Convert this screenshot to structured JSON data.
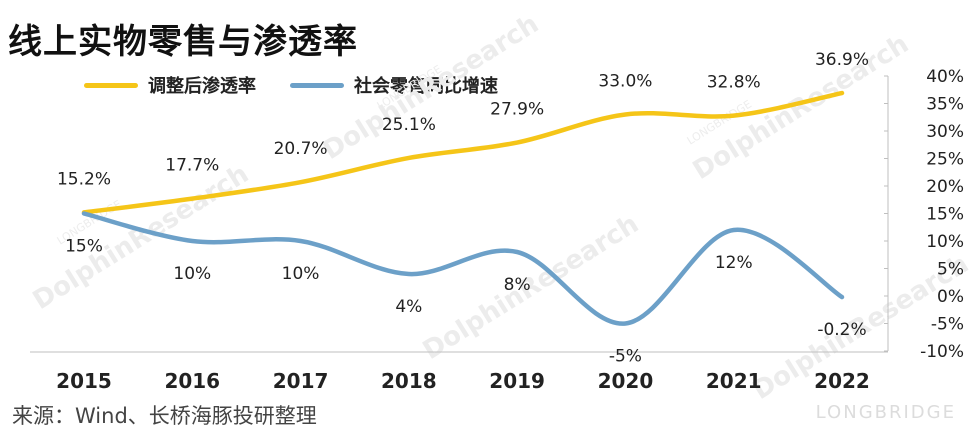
{
  "title": "线上实物零售与渗透率",
  "source": "来源：Wind、长桥海豚投研整理",
  "brand": "LONGBRIDGE",
  "watermark": "DolphinResearch",
  "watermark_small": "LONGBRIDGE",
  "colors": {
    "series1": "#F5C518",
    "series2": "#6CA0C8",
    "text": "#222222"
  },
  "chart_data": {
    "type": "line",
    "title": "线上实物零售与渗透率",
    "categories": [
      "2015",
      "2016",
      "2017",
      "2018",
      "2019",
      "2020",
      "2021",
      "2022"
    ],
    "series": [
      {
        "name": "调整后渗透率",
        "values": [
          15.2,
          17.7,
          20.7,
          25.1,
          27.9,
          33.0,
          32.8,
          36.9
        ],
        "labels": [
          "15.2%",
          "17.7%",
          "20.7%",
          "25.1%",
          "27.9%",
          "33.0%",
          "32.8%",
          "36.9%"
        ]
      },
      {
        "name": "社会零售同比增速",
        "values": [
          15,
          10,
          10,
          4,
          8,
          -5,
          12,
          -0.2
        ],
        "labels": [
          "15%",
          "10%",
          "10%",
          "4%",
          "8%",
          "-5%",
          "12%",
          "-0.2%"
        ]
      }
    ],
    "ylim": [
      -10,
      40
    ],
    "yticks": [
      "40%",
      "35%",
      "30%",
      "25%",
      "20%",
      "15%",
      "10%",
      "5%",
      "0%",
      "-5%",
      "-10%"
    ],
    "grid": false,
    "legend": "top-left"
  }
}
